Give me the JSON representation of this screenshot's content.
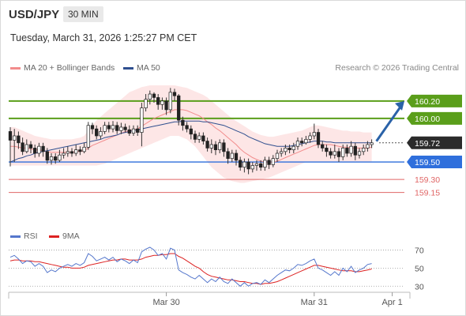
{
  "header": {
    "symbol": "USD/JPY",
    "interval": "30 MIN",
    "datetime": "Tuesday, March 31, 2026 1:25:27 PM CET"
  },
  "legend": {
    "ma20_label": "MA 20 + Bollinger Bands",
    "ma50_label": "MA 50",
    "ma20_color": "#f28c8c",
    "ma50_color": "#2f4f8f",
    "credit": "Research © 2026 Trading Central"
  },
  "rsi_legend": {
    "rsi_label": "RSI",
    "ma9_label": "9MA",
    "rsi_color": "#5577cc",
    "ma9_color": "#dd2222"
  },
  "chart_data": {
    "type": "candlestick",
    "price_range": [
      159.02,
      160.38
    ],
    "x_tick_labels": [
      "Mar 30",
      "Mar 31",
      "Apr 1"
    ],
    "x_tick_index": [
      38,
      74,
      93
    ],
    "levels": [
      {
        "value": 160.2,
        "label": "160.20",
        "kind": "resistance",
        "color": "#5a9e1a",
        "box": true
      },
      {
        "value": 160.0,
        "label": "160.00",
        "kind": "resistance",
        "color": "#5a9e1a",
        "box": true
      },
      {
        "value": 159.72,
        "label": "159.72",
        "kind": "current",
        "color": "#333333",
        "box": true
      },
      {
        "value": 159.5,
        "label": "159.50",
        "kind": "pivot",
        "color": "#2f6fdc",
        "box": true
      },
      {
        "value": 159.3,
        "label": "159.30",
        "kind": "support",
        "color": "#e06666",
        "box": false
      },
      {
        "value": 159.15,
        "label": "159.15",
        "kind": "support",
        "color": "#e06666",
        "box": false
      }
    ],
    "target": {
      "from": 159.72,
      "to": 160.2
    },
    "candles": [
      [
        159.85,
        159.75,
        159.9,
        159.45
      ],
      [
        159.75,
        159.8,
        159.88,
        159.5
      ],
      [
        159.8,
        159.72,
        159.85,
        159.65
      ],
      [
        159.72,
        159.62,
        159.78,
        159.58
      ],
      [
        159.62,
        159.7,
        159.76,
        159.6
      ],
      [
        159.7,
        159.66,
        159.74,
        159.6
      ],
      [
        159.66,
        159.6,
        159.7,
        159.55
      ],
      [
        159.6,
        159.68,
        159.72,
        159.56
      ],
      [
        159.68,
        159.62,
        159.72,
        159.56
      ],
      [
        159.62,
        159.52,
        159.66,
        159.48
      ],
      [
        159.52,
        159.56,
        159.6,
        159.47
      ],
      [
        159.56,
        159.52,
        159.6,
        159.48
      ],
      [
        159.52,
        159.58,
        159.64,
        159.5
      ],
      [
        159.58,
        159.6,
        159.66,
        159.54
      ],
      [
        159.6,
        159.62,
        159.68,
        159.56
      ],
      [
        159.62,
        159.6,
        159.66,
        159.56
      ],
      [
        159.6,
        159.64,
        159.7,
        159.57
      ],
      [
        159.64,
        159.62,
        159.68,
        159.58
      ],
      [
        159.62,
        159.67,
        159.72,
        159.6
      ],
      [
        159.67,
        159.92,
        159.96,
        159.64
      ],
      [
        159.92,
        159.88,
        159.95,
        159.82
      ],
      [
        159.88,
        159.8,
        159.92,
        159.76
      ],
      [
        159.8,
        159.85,
        159.9,
        159.76
      ],
      [
        159.85,
        159.92,
        159.96,
        159.82
      ],
      [
        159.92,
        159.88,
        159.96,
        159.84
      ],
      [
        159.88,
        159.92,
        159.97,
        159.84
      ],
      [
        159.92,
        159.86,
        159.96,
        159.82
      ],
      [
        159.86,
        159.9,
        159.95,
        159.82
      ],
      [
        159.9,
        159.87,
        159.94,
        159.84
      ],
      [
        159.87,
        159.83,
        159.92,
        159.8
      ],
      [
        159.83,
        159.88,
        159.92,
        159.8
      ],
      [
        159.88,
        159.84,
        159.92,
        159.8
      ],
      [
        159.84,
        160.12,
        160.18,
        159.68
      ],
      [
        160.12,
        160.22,
        160.28,
        160.08
      ],
      [
        160.22,
        160.28,
        160.32,
        160.16
      ],
      [
        160.28,
        160.24,
        160.3,
        160.18
      ],
      [
        160.24,
        160.16,
        160.28,
        160.1
      ],
      [
        160.16,
        160.2,
        160.24,
        160.1
      ],
      [
        160.2,
        160.1,
        160.24,
        160.04
      ],
      [
        160.1,
        160.3,
        160.35,
        160.06
      ],
      [
        160.3,
        160.26,
        160.34,
        160.2
      ],
      [
        160.26,
        159.98,
        160.28,
        159.92
      ],
      [
        159.98,
        159.92,
        160.02,
        159.86
      ],
      [
        159.92,
        159.88,
        159.96,
        159.84
      ],
      [
        159.88,
        159.82,
        159.92,
        159.76
      ],
      [
        159.82,
        159.76,
        159.86,
        159.72
      ],
      [
        159.76,
        159.8,
        159.84,
        159.72
      ],
      [
        159.8,
        159.74,
        159.84,
        159.7
      ],
      [
        159.74,
        159.66,
        159.78,
        159.62
      ],
      [
        159.66,
        159.7,
        159.76,
        159.6
      ],
      [
        159.7,
        159.64,
        159.74,
        159.58
      ],
      [
        159.64,
        159.72,
        159.76,
        159.6
      ],
      [
        159.72,
        159.62,
        159.76,
        159.56
      ],
      [
        159.62,
        159.54,
        159.66,
        159.48
      ],
      [
        159.54,
        159.6,
        159.64,
        159.5
      ],
      [
        159.6,
        159.52,
        159.64,
        159.46
      ],
      [
        159.52,
        159.44,
        159.56,
        159.4
      ],
      [
        159.44,
        159.5,
        159.54,
        159.38
      ],
      [
        159.5,
        159.42,
        159.54,
        159.36
      ],
      [
        159.42,
        159.46,
        159.5,
        159.38
      ],
      [
        159.46,
        159.48,
        159.52,
        159.4
      ],
      [
        159.48,
        159.44,
        159.52,
        159.4
      ],
      [
        159.44,
        159.52,
        159.56,
        159.4
      ],
      [
        159.52,
        159.47,
        159.56,
        159.42
      ],
      [
        159.47,
        159.54,
        159.58,
        159.44
      ],
      [
        159.54,
        159.6,
        159.64,
        159.5
      ],
      [
        159.6,
        159.62,
        159.66,
        159.56
      ],
      [
        159.62,
        159.66,
        159.7,
        159.58
      ],
      [
        159.66,
        159.64,
        159.7,
        159.6
      ],
      [
        159.64,
        159.68,
        159.72,
        159.6
      ],
      [
        159.68,
        159.74,
        159.78,
        159.64
      ],
      [
        159.74,
        159.72,
        159.78,
        159.68
      ],
      [
        159.72,
        159.76,
        159.8,
        159.7
      ],
      [
        159.76,
        159.8,
        159.84,
        159.72
      ],
      [
        159.8,
        159.84,
        159.94,
        159.76
      ],
      [
        159.84,
        159.7,
        159.88,
        159.66
      ],
      [
        159.7,
        159.66,
        159.74,
        159.62
      ],
      [
        159.66,
        159.62,
        159.7,
        159.56
      ],
      [
        159.62,
        159.58,
        159.66,
        159.54
      ],
      [
        159.58,
        159.62,
        159.7,
        159.54
      ],
      [
        159.62,
        159.56,
        159.66,
        159.5
      ],
      [
        159.56,
        159.66,
        159.7,
        159.52
      ],
      [
        159.66,
        159.6,
        159.7,
        159.56
      ],
      [
        159.6,
        159.68,
        159.74,
        159.56
      ],
      [
        159.68,
        159.58,
        159.72,
        159.52
      ],
      [
        159.58,
        159.62,
        159.66,
        159.54
      ],
      [
        159.62,
        159.66,
        159.7,
        159.58
      ],
      [
        159.66,
        159.7,
        159.74,
        159.62
      ],
      [
        159.7,
        159.72,
        159.76,
        159.66
      ]
    ],
    "ma20": [
      159.68,
      159.68,
      159.67,
      159.66,
      159.66,
      159.65,
      159.64,
      159.64,
      159.63,
      159.62,
      159.61,
      159.61,
      159.61,
      159.61,
      159.61,
      159.61,
      159.62,
      159.62,
      159.63,
      159.66,
      159.69,
      159.71,
      159.73,
      159.75,
      159.77,
      159.79,
      159.81,
      159.83,
      159.85,
      159.86,
      159.87,
      159.88,
      159.91,
      159.94,
      159.97,
      160.0,
      160.02,
      160.04,
      160.06,
      160.08,
      160.1,
      160.1,
      160.1,
      160.09,
      160.07,
      160.05,
      160.03,
      160.0,
      159.96,
      159.93,
      159.89,
      159.86,
      159.82,
      159.78,
      159.74,
      159.7,
      159.65,
      159.61,
      159.58,
      159.55,
      159.53,
      159.51,
      159.5,
      159.5,
      159.5,
      159.51,
      159.53,
      159.55,
      159.57,
      159.59,
      159.61,
      159.63,
      159.65,
      159.67,
      159.69,
      159.7,
      159.7,
      159.7,
      159.7,
      159.69,
      159.68,
      159.67,
      159.67,
      159.66,
      159.66,
      159.66,
      159.66,
      159.66,
      159.67
    ],
    "bb_upper": [
      159.9,
      159.9,
      159.88,
      159.86,
      159.84,
      159.82,
      159.8,
      159.79,
      159.78,
      159.77,
      159.76,
      159.76,
      159.76,
      159.76,
      159.76,
      159.76,
      159.77,
      159.78,
      159.8,
      159.86,
      159.92,
      159.98,
      160.02,
      160.06,
      160.1,
      160.14,
      160.18,
      160.22,
      160.26,
      160.3,
      160.32,
      160.34,
      160.36,
      160.37,
      160.38,
      160.38,
      160.38,
      160.38,
      160.38,
      160.38,
      160.38,
      160.37,
      160.36,
      160.35,
      160.33,
      160.31,
      160.29,
      160.27,
      160.24,
      160.2,
      160.16,
      160.12,
      160.08,
      160.04,
      160.0,
      159.97,
      159.94,
      159.91,
      159.88,
      159.85,
      159.83,
      159.81,
      159.8,
      159.79,
      159.79,
      159.8,
      159.81,
      159.82,
      159.83,
      159.84,
      159.85,
      159.86,
      159.88,
      159.9,
      159.92,
      159.92,
      159.91,
      159.9,
      159.89,
      159.88,
      159.87,
      159.86,
      159.86,
      159.85,
      159.85,
      159.85,
      159.84,
      159.84,
      159.84
    ],
    "bb_lower": [
      159.46,
      159.46,
      159.46,
      159.46,
      159.46,
      159.46,
      159.46,
      159.46,
      159.46,
      159.46,
      159.46,
      159.46,
      159.46,
      159.46,
      159.46,
      159.46,
      159.46,
      159.46,
      159.46,
      159.46,
      159.46,
      159.46,
      159.47,
      159.48,
      159.5,
      159.52,
      159.54,
      159.56,
      159.58,
      159.6,
      159.62,
      159.64,
      159.66,
      159.68,
      159.7,
      159.72,
      159.74,
      159.76,
      159.78,
      159.8,
      159.8,
      159.8,
      159.78,
      159.76,
      159.72,
      159.68,
      159.62,
      159.56,
      159.5,
      159.44,
      159.4,
      159.36,
      159.32,
      159.3,
      159.28,
      159.27,
      159.26,
      159.26,
      159.27,
      159.28,
      159.29,
      159.3,
      159.31,
      159.32,
      159.34,
      159.36,
      159.38,
      159.4,
      159.42,
      159.44,
      159.46,
      159.48,
      159.5,
      159.5,
      159.5,
      159.5,
      159.5,
      159.5,
      159.5,
      159.5,
      159.5,
      159.5,
      159.5,
      159.5,
      159.5,
      159.5,
      159.5,
      159.5,
      159.5
    ],
    "ma50": [
      159.5,
      159.52,
      159.54,
      159.55,
      159.57,
      159.58,
      159.6,
      159.61,
      159.62,
      159.63,
      159.64,
      159.65,
      159.66,
      159.67,
      159.68,
      159.69,
      159.7,
      159.71,
      159.72,
      159.73,
      159.74,
      159.75,
      159.76,
      159.78,
      159.79,
      159.8,
      159.81,
      159.83,
      159.84,
      159.85,
      159.86,
      159.87,
      159.88,
      159.89,
      159.9,
      159.91,
      159.92,
      159.93,
      159.94,
      159.95,
      159.96,
      159.96,
      159.97,
      159.97,
      159.97,
      159.97,
      159.97,
      159.96,
      159.96,
      159.95,
      159.94,
      159.93,
      159.92,
      159.9,
      159.88,
      159.86,
      159.84,
      159.82,
      159.79,
      159.77,
      159.75,
      159.73,
      159.71,
      159.7,
      159.69,
      159.68,
      159.68,
      159.68,
      159.68,
      159.69,
      159.7,
      159.71,
      159.72,
      159.73,
      159.74,
      159.74,
      159.74,
      159.73,
      159.73,
      159.72,
      159.72,
      159.72,
      159.72,
      159.72,
      159.72,
      159.72,
      159.72,
      159.72,
      159.72
    ],
    "rsi": {
      "levels": [
        70,
        50,
        30
      ],
      "range": [
        25,
        80
      ],
      "rsi": [
        62,
        64,
        60,
        55,
        58,
        57,
        52,
        55,
        52,
        45,
        48,
        46,
        50,
        52,
        54,
        52,
        55,
        53,
        56,
        66,
        63,
        58,
        60,
        62,
        59,
        62,
        57,
        60,
        58,
        55,
        59,
        56,
        68,
        71,
        73,
        70,
        64,
        66,
        60,
        72,
        70,
        48,
        45,
        43,
        40,
        38,
        42,
        38,
        34,
        38,
        35,
        40,
        35,
        33,
        38,
        34,
        30,
        34,
        30,
        33,
        34,
        32,
        37,
        34,
        38,
        42,
        45,
        48,
        47,
        50,
        54,
        53,
        55,
        58,
        60,
        50,
        48,
        45,
        42,
        46,
        42,
        50,
        46,
        52,
        45,
        48,
        50,
        54,
        55
      ],
      "ma9": [
        58,
        59,
        59,
        58,
        58,
        58,
        57,
        57,
        56,
        55,
        54,
        53,
        52,
        51,
        51,
        50,
        50,
        50,
        51,
        53,
        54,
        55,
        56,
        57,
        58,
        59,
        59,
        60,
        60,
        59,
        59,
        59,
        60,
        62,
        63,
        64,
        64,
        65,
        65,
        66,
        66,
        63,
        61,
        58,
        55,
        52,
        50,
        46,
        43,
        41,
        40,
        39,
        38,
        37,
        37,
        36,
        35,
        35,
        34,
        33,
        33,
        32,
        33,
        33,
        34,
        35,
        37,
        39,
        41,
        43,
        45,
        47,
        49,
        51,
        53,
        53,
        52,
        51,
        50,
        49,
        48,
        47,
        47,
        47,
        46,
        46,
        47,
        48,
        49
      ]
    }
  }
}
